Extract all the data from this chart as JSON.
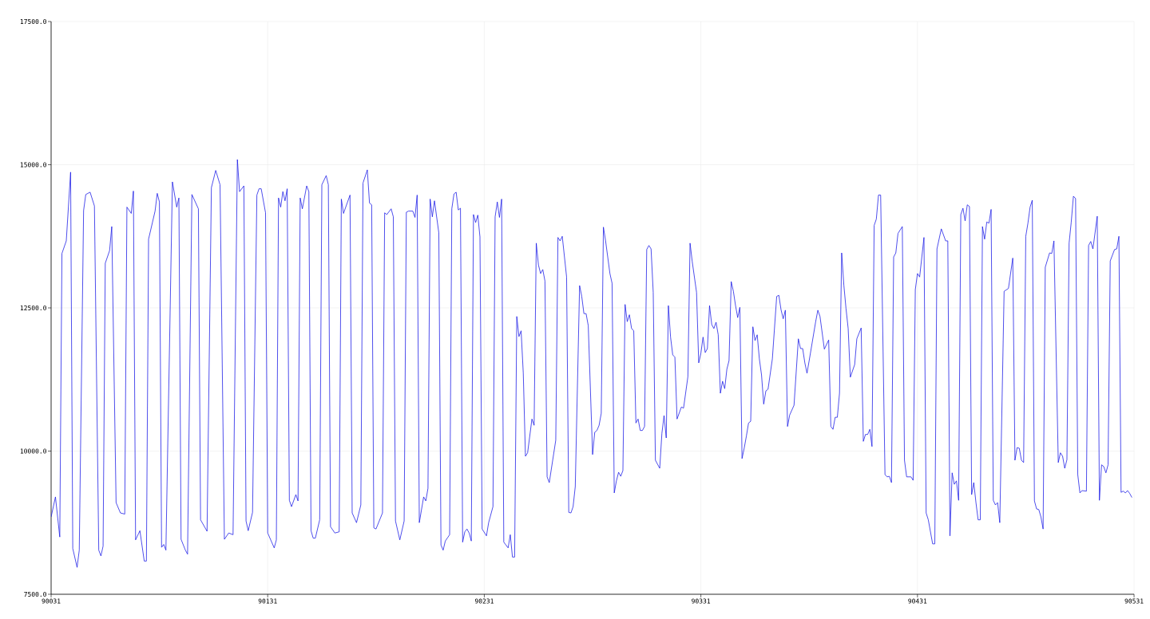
{
  "chart_data": {
    "type": "line",
    "x": [
      90031,
      90033,
      90035,
      90036,
      90038,
      90040,
      90041,
      90043,
      90044,
      90046,
      90047,
      90049,
      90051,
      90053,
      90054,
      90055,
      90056,
      90058,
      90059,
      90061,
      90063,
      90065,
      90066,
      90068,
      90069,
      90070,
      90072,
      90074,
      90075,
      90076,
      90079,
      90080,
      90081,
      90082,
      90083,
      90084,
      90087,
      90089,
      90090,
      90091,
      90093,
      90094,
      90096,
      90099,
      90100,
      90103,
      90105,
      90107,
      90109,
      90111,
      90113,
      90115,
      90117,
      90118,
      90120,
      90121,
      90122,
      90124,
      90126,
      90127,
      90128,
      90130,
      90131,
      90134,
      90135,
      90136,
      90137,
      90138,
      90139,
      90140,
      90141,
      90142,
      90144,
      90145,
      90146,
      90147,
      90149,
      90150,
      90151,
      90152,
      90153,
      90155,
      90156,
      90158,
      90159,
      90160,
      90162,
      90164,
      90165,
      90166,
      90169,
      90170,
      90172,
      90174,
      90175,
      90177,
      90178,
      90179,
      90180,
      90181,
      90184,
      90185,
      90186,
      90188,
      90189,
      90190,
      90192,
      90194,
      90195,
      90196,
      90198,
      90199,
      90200,
      90201,
      90203,
      90204,
      90205,
      90206,
      90207,
      90208,
      90210,
      90211,
      90212,
      90213,
      90215,
      90216,
      90217,
      90218,
      90219,
      90220,
      90221,
      90222,
      90223,
      90224,
      90225,
      90226,
      90227,
      90228,
      90229,
      90230,
      90232,
      90233,
      90235,
      90236,
      90237,
      90238,
      90239,
      90240,
      90242,
      90243,
      90244,
      90245,
      90246,
      90247,
      90248,
      90249,
      90250,
      90251,
      90253,
      90254,
      90255,
      90256,
      90257,
      90258,
      90259,
      90260,
      90261,
      90264,
      90265,
      90266,
      90267,
      90269,
      90270,
      90271,
      90272,
      90273,
      90275,
      90276,
      90277,
      90278,
      90279,
      90281,
      90282,
      90283,
      90284,
      90285,
      90286,
      90287,
      90289,
      90290,
      90291,
      90292,
      90293,
      90294,
      90295,
      90296,
      90297,
      90298,
      90299,
      90300,
      90301,
      90302,
      90303,
      90304,
      90305,
      90306,
      90307,
      90308,
      90309,
      90310,
      90312,
      90313,
      90314,
      90315,
      90316,
      90317,
      90318,
      90319,
      90320,
      90322,
      90323,
      90325,
      90326,
      90327,
      90329,
      90330,
      90331,
      90332,
      90333,
      90334,
      90335,
      90336,
      90337,
      90338,
      90339,
      90340,
      90341,
      90342,
      90343,
      90344,
      90345,
      90346,
      90347,
      90348,
      90349,
      90350,
      90351,
      90352,
      90353,
      90354,
      90355,
      90356,
      90357,
      90358,
      90359,
      90360,
      90361,
      90362,
      90364,
      90366,
      90367,
      90368,
      90369,
      90370,
      90371,
      90372,
      90374,
      90376,
      90377,
      90378,
      90379,
      90380,
      90381,
      90384,
      90385,
      90386,
      90388,
      90390,
      90391,
      90392,
      90393,
      90394,
      90395,
      90396,
      90397,
      90398,
      90399,
      90400,
      90402,
      90403,
      90405,
      90406,
      90407,
      90408,
      90409,
      90410,
      90411,
      90412,
      90413,
      90414,
      90416,
      90417,
      90418,
      90419,
      90420,
      90421,
      90422,
      90424,
      90425,
      90426,
      90428,
      90429,
      90430,
      90431,
      90432,
      90434,
      90435,
      90436,
      90438,
      90439,
      90440,
      90442,
      90444,
      90445,
      90446,
      90447,
      90448,
      90449,
      90450,
      90451,
      90452,
      90453,
      90454,
      90455,
      90456,
      90457,
      90458,
      90459,
      90460,
      90461,
      90462,
      90463,
      90464,
      90465,
      90466,
      90467,
      90468,
      90469,
      90471,
      90473,
      90475,
      90476,
      90477,
      90478,
      90479,
      90480,
      90481,
      90482,
      90483,
      90484,
      90485,
      90486,
      90487,
      90488,
      90489,
      90490,
      90492,
      90493,
      90494,
      90496,
      90497,
      90498,
      90499,
      90500,
      90501,
      90502,
      90503,
      90504,
      90505,
      90506,
      90507,
      90509,
      90510,
      90511,
      90512,
      90514,
      90515,
      90516,
      90517,
      90518,
      90519,
      90520,
      90522,
      90523,
      90524,
      90525,
      90526,
      90527,
      90528,
      90529,
      90530
    ],
    "series": [
      {
        "color": "#1414e6",
        "values": [
          8850,
          9200,
          8500,
          13450,
          13670,
          14870,
          8300,
          7970,
          8270,
          14200,
          14480,
          14520,
          14280,
          8270,
          8170,
          8340,
          13280,
          13500,
          13920,
          9100,
          8920,
          8900,
          14260,
          14150,
          14540,
          8450,
          8610,
          8080,
          8080,
          13700,
          14190,
          14500,
          14350,
          8320,
          8370,
          8270,
          14700,
          14260,
          14420,
          8460,
          8270,
          8200,
          14480,
          14230,
          8800,
          8600,
          14600,
          14900,
          14650,
          8460,
          8570,
          8540,
          15090,
          14530,
          14630,
          8780,
          8610,
          8930,
          14470,
          14580,
          14580,
          14160,
          8570,
          8310,
          8450,
          14420,
          14260,
          14530,
          14370,
          14580,
          9140,
          9030,
          9240,
          9130,
          14420,
          14230,
          14630,
          14530,
          8610,
          8480,
          8480,
          8800,
          14650,
          14810,
          14650,
          8680,
          8570,
          8590,
          14400,
          14150,
          14470,
          8920,
          8750,
          9060,
          14680,
          14910,
          14330,
          14300,
          8660,
          8640,
          8920,
          14160,
          14130,
          14230,
          14090,
          8780,
          8450,
          8780,
          14170,
          14190,
          14190,
          14080,
          14470,
          8750,
          9200,
          9130,
          9350,
          14400,
          14090,
          14370,
          13810,
          8360,
          8270,
          8430,
          8540,
          14230,
          14490,
          14520,
          14210,
          14240,
          8410,
          8590,
          8640,
          8570,
          8430,
          14130,
          13990,
          14120,
          13740,
          8640,
          8520,
          8750,
          9030,
          14090,
          14350,
          14080,
          14400,
          8410,
          8310,
          8540,
          8150,
          8150,
          12350,
          12000,
          12100,
          11360,
          9910,
          9970,
          10560,
          10450,
          13630,
          13250,
          13100,
          13170,
          12970,
          9550,
          9450,
          10190,
          13730,
          13670,
          13750,
          13040,
          8930,
          8920,
          9030,
          9380,
          12890,
          12700,
          12400,
          12400,
          12190,
          9940,
          10330,
          10360,
          10450,
          10660,
          13910,
          13670,
          13100,
          12930,
          9270,
          9480,
          9630,
          9560,
          9660,
          12560,
          12260,
          12380,
          12140,
          12100,
          10490,
          10560,
          10360,
          10360,
          10430,
          13520,
          13590,
          13530,
          12770,
          9840,
          9700,
          10310,
          10620,
          10230,
          12540,
          11990,
          11680,
          11640,
          10560,
          10770,
          10750,
          11300,
          13630,
          13310,
          12770,
          11540,
          11710,
          11990,
          11720,
          11790,
          12540,
          12210,
          12140,
          12250,
          12030,
          11010,
          11220,
          11090,
          11430,
          11580,
          12960,
          12790,
          12540,
          12330,
          12510,
          9870,
          10050,
          10260,
          10490,
          10520,
          12170,
          11930,
          12030,
          11610,
          11330,
          10820,
          11050,
          11080,
          11610,
          12700,
          12720,
          12470,
          12310,
          12460,
          10430,
          10630,
          10800,
          11960,
          11790,
          11790,
          11540,
          11360,
          11580,
          12260,
          12460,
          12350,
          11780,
          11940,
          10430,
          10380,
          10590,
          10590,
          11010,
          13460,
          12900,
          12490,
          12140,
          11290,
          11510,
          11960,
          12150,
          10170,
          10290,
          10290,
          10380,
          10080,
          13940,
          14050,
          14470,
          14470,
          9590,
          9550,
          9560,
          9450,
          13390,
          13460,
          13800,
          13920,
          9840,
          9550,
          9550,
          9490,
          12820,
          13100,
          13040,
          13730,
          8920,
          8800,
          8380,
          8380,
          13530,
          13880,
          13670,
          13670,
          8520,
          9620,
          9420,
          9480,
          9140,
          14130,
          14240,
          14020,
          14300,
          14270,
          9240,
          9450,
          9100,
          8800,
          8800,
          13920,
          13700,
          14000,
          13980,
          14220,
          9140,
          9060,
          9100,
          8750,
          12790,
          12840,
          13370,
          9840,
          10060,
          10050,
          9840,
          9800,
          13750,
          13980,
          14260,
          14380,
          9130,
          8990,
          8980,
          8850,
          8640,
          13210,
          13460,
          13450,
          13670,
          9800,
          9970,
          9910,
          9700,
          9850,
          13630,
          14000,
          14450,
          14410,
          9590,
          9270,
          9310,
          9300,
          13590,
          13660,
          13530,
          14100,
          9140,
          9760,
          9730,
          9620,
          9760,
          13320,
          13520,
          13530,
          13750,
          9280,
          9300,
          9270,
          9310,
          9260,
          9190
        ]
      }
    ],
    "xlim": [
      90031,
      90531
    ],
    "ylim": [
      7500,
      17500
    ],
    "xticks": [
      90031,
      90131,
      90231,
      90331,
      90431,
      90531
    ],
    "yticks": [
      {
        "value": 7500,
        "label": "7500.0"
      },
      {
        "value": 10000,
        "label": "10000.0"
      },
      {
        "value": 12500,
        "label": "12500.0"
      },
      {
        "value": 15000,
        "label": "15000.0"
      },
      {
        "value": 17500,
        "label": "17500.0"
      }
    ],
    "grid": true
  }
}
